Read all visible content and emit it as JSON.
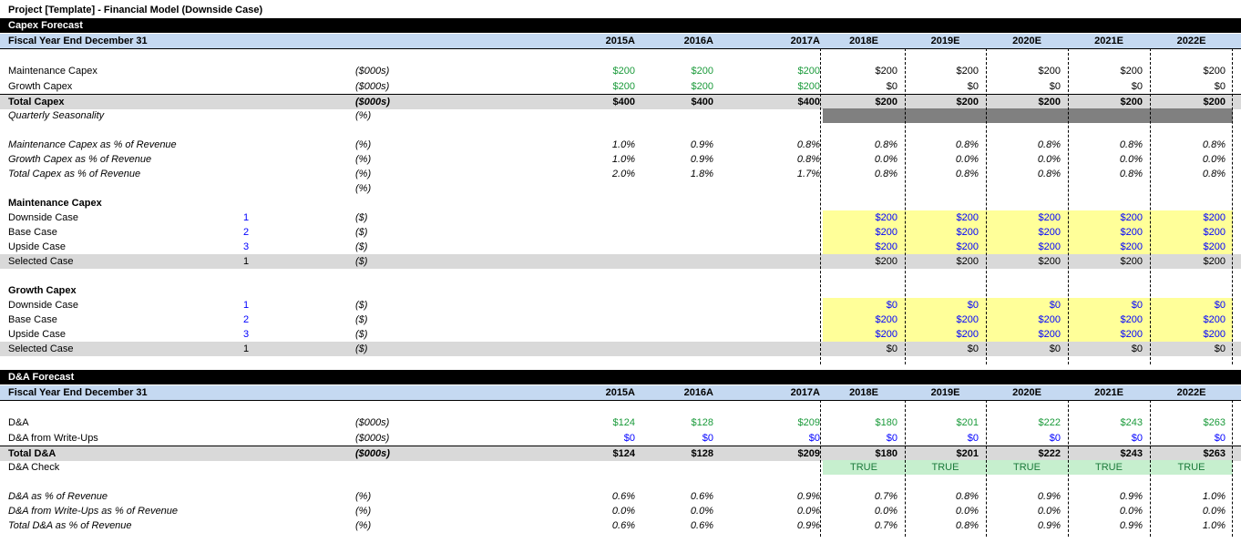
{
  "title": "Project [Template] - Financial Model (Downside Case)",
  "years": [
    "2015A",
    "2016A",
    "2017A",
    "2018E",
    "2019E",
    "2020E",
    "2021E",
    "2022E"
  ],
  "capex": {
    "section_title": "Capex Forecast",
    "fy_label": "Fiscal Year End December 31",
    "maint": {
      "label": "Maintenance Capex",
      "unit": "($000s)",
      "values": [
        "$200",
        "$200",
        "$200",
        "$200",
        "$200",
        "$200",
        "$200",
        "$200"
      ]
    },
    "growth": {
      "label": "Growth Capex",
      "unit": "($000s)",
      "values": [
        "$200",
        "$200",
        "$200",
        "$0",
        "$0",
        "$0",
        "$0",
        "$0"
      ]
    },
    "total": {
      "label": "Total Capex",
      "unit": "($000s)",
      "values": [
        "$400",
        "$400",
        "$400",
        "$200",
        "$200",
        "$200",
        "$200",
        "$200"
      ]
    },
    "seasonality": {
      "label": "Quarterly Seasonality",
      "unit": "(%)"
    },
    "maint_pct": {
      "label": "Maintenance Capex as % of Revenue",
      "unit": "(%)",
      "values": [
        "1.0%",
        "0.9%",
        "0.8%",
        "0.8%",
        "0.8%",
        "0.8%",
        "0.8%",
        "0.8%"
      ]
    },
    "growth_pct": {
      "label": "Growth Capex as % of Revenue",
      "unit": "(%)",
      "values": [
        "1.0%",
        "0.9%",
        "0.8%",
        "0.0%",
        "0.0%",
        "0.0%",
        "0.0%",
        "0.0%"
      ]
    },
    "total_pct": {
      "label": "Total Capex as % of Revenue",
      "unit": "(%)",
      "values": [
        "2.0%",
        "1.8%",
        "1.7%",
        "0.8%",
        "0.8%",
        "0.8%",
        "0.8%",
        "0.8%"
      ]
    },
    "blank_unit": "(%)",
    "maint_cases": {
      "title": "Maintenance Capex",
      "rows": [
        {
          "label": "Downside Case",
          "code": "1",
          "unit": "($)",
          "values": [
            "$200",
            "$200",
            "$200",
            "$200",
            "$200"
          ]
        },
        {
          "label": "Base Case",
          "code": "2",
          "unit": "($)",
          "values": [
            "$200",
            "$200",
            "$200",
            "$200",
            "$200"
          ]
        },
        {
          "label": "Upside Case",
          "code": "3",
          "unit": "($)",
          "values": [
            "$200",
            "$200",
            "$200",
            "$200",
            "$200"
          ]
        }
      ],
      "selected": {
        "label": "Selected Case",
        "code": "1",
        "unit": "($)",
        "values": [
          "$200",
          "$200",
          "$200",
          "$200",
          "$200"
        ]
      }
    },
    "growth_cases": {
      "title": "Growth Capex",
      "rows": [
        {
          "label": "Downside Case",
          "code": "1",
          "unit": "($)",
          "values": [
            "$0",
            "$0",
            "$0",
            "$0",
            "$0"
          ]
        },
        {
          "label": "Base Case",
          "code": "2",
          "unit": "($)",
          "values": [
            "$200",
            "$200",
            "$200",
            "$200",
            "$200"
          ]
        },
        {
          "label": "Upside Case",
          "code": "3",
          "unit": "($)",
          "values": [
            "$200",
            "$200",
            "$200",
            "$200",
            "$200"
          ]
        }
      ],
      "selected": {
        "label": "Selected Case",
        "code": "1",
        "unit": "($)",
        "values": [
          "$0",
          "$0",
          "$0",
          "$0",
          "$0"
        ]
      }
    }
  },
  "da": {
    "section_title": "D&A Forecast",
    "fy_label": "Fiscal Year End December 31",
    "da": {
      "label": "D&A",
      "unit": "($000s)",
      "values": [
        "$124",
        "$128",
        "$209",
        "$180",
        "$201",
        "$222",
        "$243",
        "$263"
      ]
    },
    "writeups": {
      "label": "D&A from Write-Ups",
      "unit": "($000s)",
      "values": [
        "$0",
        "$0",
        "$0",
        "$0",
        "$0",
        "$0",
        "$0",
        "$0"
      ]
    },
    "total": {
      "label": "Total D&A",
      "unit": "($000s)",
      "values": [
        "$124",
        "$128",
        "$209",
        "$180",
        "$201",
        "$222",
        "$243",
        "$263"
      ]
    },
    "check": {
      "label": "D&A Check",
      "values": [
        "TRUE",
        "TRUE",
        "TRUE",
        "TRUE",
        "TRUE"
      ]
    },
    "da_pct": {
      "label": "D&A as % of Revenue",
      "unit": "(%)",
      "values": [
        "0.6%",
        "0.6%",
        "0.9%",
        "0.7%",
        "0.8%",
        "0.9%",
        "0.9%",
        "1.0%"
      ]
    },
    "writeups_pct": {
      "label": "D&A from Write-Ups as % of Revenue",
      "unit": "(%)",
      "values": [
        "0.0%",
        "0.0%",
        "0.0%",
        "0.0%",
        "0.0%",
        "0.0%",
        "0.0%",
        "0.0%"
      ]
    },
    "total_pct": {
      "label": "Total D&A as % of Revenue",
      "unit": "(%)",
      "values": [
        "0.6%",
        "0.6%",
        "0.9%",
        "0.7%",
        "0.8%",
        "0.9%",
        "0.9%",
        "1.0%"
      ]
    }
  },
  "colors": {
    "header_band": "#c5d9f1",
    "input_green": "#1a9a3a",
    "input_blue": "#0000ff",
    "highlight_yellow": "#ffff99",
    "check_green": "#c6efce",
    "total_gray": "#d9d9d9"
  }
}
